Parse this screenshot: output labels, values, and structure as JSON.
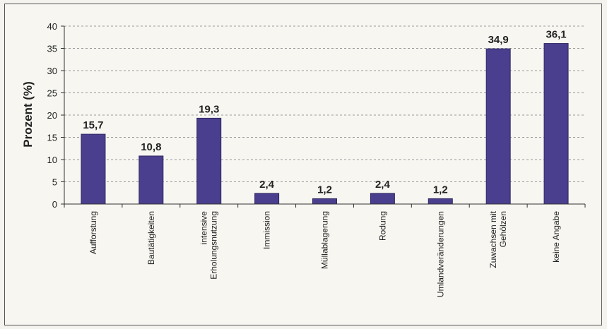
{
  "chart_data": {
    "type": "bar",
    "ylabel": "Prozent (%)",
    "xlabel": "",
    "ylim": [
      0,
      40
    ],
    "yticks": [
      0,
      5,
      10,
      15,
      20,
      25,
      30,
      35,
      40
    ],
    "grid": true,
    "legend": "none",
    "bar_color": "#4a3f8f",
    "categories": [
      [
        "Aufforstung"
      ],
      [
        "Bautätigkeiten"
      ],
      [
        "intensive",
        "Erholungsnutzung"
      ],
      [
        "Immission"
      ],
      [
        "Müllablagerung"
      ],
      [
        "Rodung"
      ],
      [
        "Umlandveränderungen"
      ],
      [
        "Zuwachsen mit",
        "Gehölzen"
      ],
      [
        "keine Angabe"
      ]
    ],
    "values": [
      15.7,
      10.8,
      19.3,
      2.4,
      1.2,
      2.4,
      1.2,
      34.9,
      36.1
    ],
    "value_labels": [
      "15,7",
      "10,8",
      "19,3",
      "2,4",
      "1,2",
      "2,4",
      "1,2",
      "34,9",
      "36,1"
    ]
  }
}
